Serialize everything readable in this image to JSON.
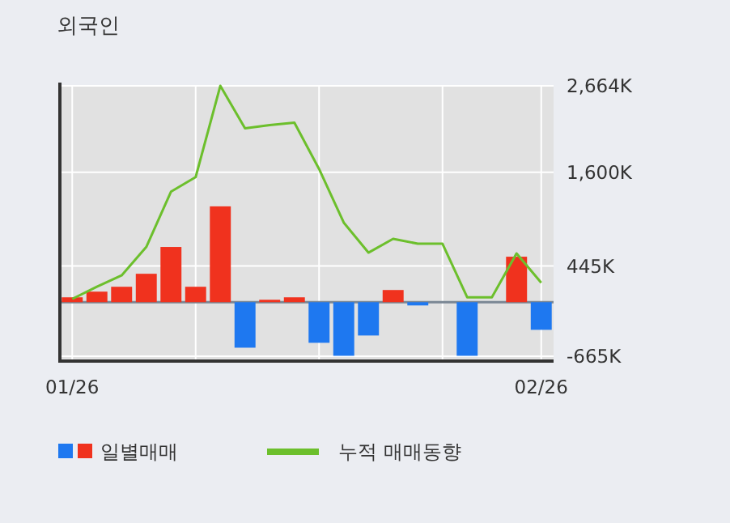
{
  "chart_data": {
    "type": "bar",
    "title": "외국인",
    "categories": [
      "01/26",
      null,
      null,
      null,
      null,
      null,
      null,
      null,
      null,
      null,
      null,
      null,
      null,
      null,
      null,
      null,
      null,
      null,
      null,
      "02/26"
    ],
    "series": [
      {
        "name": "일별매매",
        "colors": [
          "#f0321e",
          "#f0321e",
          "#f0321e",
          "#f0321e",
          "#f0321e",
          "#f0321e",
          "#f0321e",
          "#1e78f0",
          "#f0321e",
          "#f0321e",
          "#1e78f0",
          "#1e78f0",
          "#1e78f0",
          "#f0321e",
          "#1e78f0",
          "#f0321e",
          "#1e78f0",
          "#f0321e",
          "#f0321e",
          "#1e78f0"
        ],
        "values": [
          60,
          130,
          190,
          350,
          680,
          190,
          1180,
          -560,
          30,
          60,
          -500,
          -660,
          -410,
          150,
          -40,
          0,
          -660,
          0,
          560,
          -340
        ]
      },
      {
        "name": "누적 매매동향",
        "type": "line",
        "color": "#6cbf2c",
        "values": [
          40,
          190,
          330,
          680,
          1360,
          1540,
          2664,
          2140,
          2180,
          2210,
          1640,
          980,
          610,
          780,
          720,
          720,
          60,
          60,
          600,
          240
        ]
      }
    ],
    "ylim": [
      -725,
      2664
    ],
    "yticks": [
      {
        "value": 2664,
        "label": "2,664K"
      },
      {
        "value": 1600,
        "label": "1,600K"
      },
      {
        "value": 445,
        "label": "445K"
      },
      {
        "value": -665,
        "label": "-665K"
      }
    ],
    "grid": true,
    "legend": "bottom"
  }
}
